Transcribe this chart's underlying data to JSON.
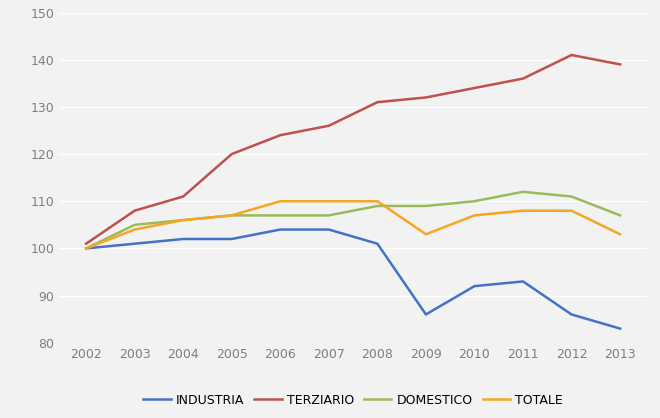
{
  "years": [
    2002,
    2003,
    2004,
    2005,
    2006,
    2007,
    2008,
    2009,
    2010,
    2011,
    2012,
    2013
  ],
  "industria": [
    100,
    101,
    102,
    102,
    104,
    104,
    101,
    86,
    92,
    93,
    86,
    83
  ],
  "terziario": [
    101,
    108,
    111,
    120,
    124,
    126,
    131,
    132,
    134,
    136,
    141,
    139
  ],
  "domestico": [
    100,
    105,
    106,
    107,
    107,
    107,
    109,
    109,
    110,
    112,
    111,
    107
  ],
  "totale": [
    100,
    104,
    106,
    107,
    110,
    110,
    110,
    103,
    107,
    108,
    108,
    103
  ],
  "colors": {
    "industria": "#4472C4",
    "terziario": "#C0504D",
    "domestico": "#9BBB59",
    "totale": "#F5A623"
  },
  "legend_labels": [
    "INDUSTRIA",
    "TERZIARIO",
    "DOMESTICO",
    "TOTALE"
  ],
  "ylim": [
    80,
    150
  ],
  "yticks": [
    80,
    90,
    100,
    110,
    120,
    130,
    140,
    150
  ],
  "linewidth": 1.8,
  "background_color": "#F2F2F2",
  "grid_color": "#FFFFFF",
  "tick_color": "#7F7F7F",
  "tick_fontsize": 9,
  "legend_fontsize": 9
}
